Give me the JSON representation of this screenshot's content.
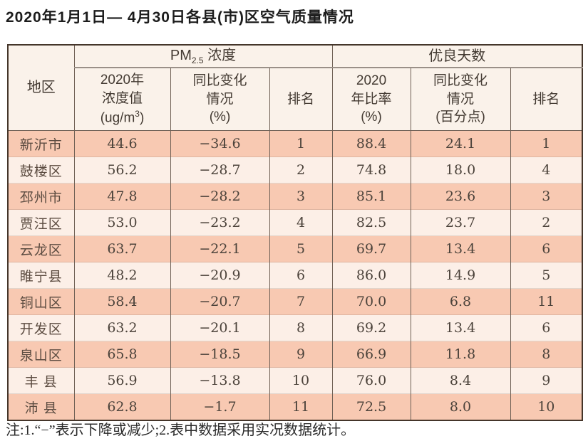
{
  "title": "2020年1月1日— 4月30日各县(市)区空气质量情况",
  "table": {
    "region_header": "地区",
    "pm_group": {
      "pm": "PM",
      "sub": "2.5",
      "label": " 浓度"
    },
    "days_group": "优良天数",
    "pm_value_header": {
      "line1": "2020年",
      "line2": "浓度值",
      "unit_prefix": "(ug/m",
      "unit_sup": "3",
      "unit_suffix": ")"
    },
    "pm_change_header": {
      "line1": "同比变化",
      "line2": "情况",
      "line3": "(%)"
    },
    "pm_rank_header": "排名",
    "days_ratio_header": {
      "line1": "2020",
      "line2": "年比率",
      "line3": "(%)"
    },
    "days_change_header": {
      "line1": "同比变化",
      "line2": "情况",
      "line3": "(百分点)"
    },
    "days_rank_header": "排名",
    "rows": [
      {
        "region": "新沂市",
        "pm_value": "44.6",
        "pm_change": "−34.6",
        "pm_rank": "1",
        "days_ratio": "88.4",
        "days_change": "24.1",
        "days_rank": "1"
      },
      {
        "region": "鼓楼区",
        "pm_value": "56.2",
        "pm_change": "−28.7",
        "pm_rank": "2",
        "days_ratio": "74.8",
        "days_change": "18.0",
        "days_rank": "4"
      },
      {
        "region": "邳州市",
        "pm_value": "47.8",
        "pm_change": "−28.2",
        "pm_rank": "3",
        "days_ratio": "85.1",
        "days_change": "23.6",
        "days_rank": "3"
      },
      {
        "region": "贾汪区",
        "pm_value": "53.0",
        "pm_change": "−23.2",
        "pm_rank": "4",
        "days_ratio": "82.5",
        "days_change": "23.7",
        "days_rank": "2"
      },
      {
        "region": "云龙区",
        "pm_value": "63.7",
        "pm_change": "−22.1",
        "pm_rank": "5",
        "days_ratio": "69.7",
        "days_change": "13.4",
        "days_rank": "6"
      },
      {
        "region": "睢宁县",
        "pm_value": "48.2",
        "pm_change": "−20.9",
        "pm_rank": "6",
        "days_ratio": "86.0",
        "days_change": "14.9",
        "days_rank": "5"
      },
      {
        "region": "铜山区",
        "pm_value": "58.4",
        "pm_change": "−20.7",
        "pm_rank": "7",
        "days_ratio": "70.0",
        "days_change": "6.8",
        "days_rank": "11"
      },
      {
        "region": "开发区",
        "pm_value": "63.2",
        "pm_change": "−20.1",
        "pm_rank": "8",
        "days_ratio": "69.2",
        "days_change": "13.4",
        "days_rank": "6"
      },
      {
        "region": "泉山区",
        "pm_value": "65.8",
        "pm_change": "−18.5",
        "pm_rank": "9",
        "days_ratio": "66.9",
        "days_change": "11.8",
        "days_rank": "8"
      },
      {
        "region": "丰 县",
        "pm_value": "56.9",
        "pm_change": "−13.8",
        "pm_rank": "10",
        "days_ratio": "76.0",
        "days_change": "8.4",
        "days_rank": "9"
      },
      {
        "region": "沛 县",
        "pm_value": "62.8",
        "pm_change": "−1.7",
        "pm_rank": "11",
        "days_ratio": "72.5",
        "days_change": "8.0",
        "days_rank": "10"
      }
    ]
  },
  "note": "注:1.“−”表示下降或减少;2.表中数据采用实况数据统计。"
}
